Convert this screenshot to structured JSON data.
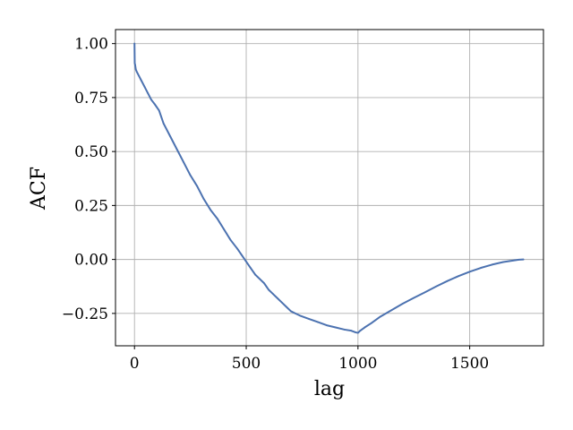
{
  "chart_data": {
    "type": "line",
    "title": "",
    "xlabel": "lag",
    "ylabel": "ACF",
    "xlim": [
      -85,
      1830
    ],
    "ylim": [
      -0.4,
      1.065
    ],
    "grid": true,
    "x_ticks": [
      0,
      500,
      1000,
      1500
    ],
    "x_tick_labels": [
      "0",
      "500",
      "1000",
      "1500"
    ],
    "y_ticks": [
      -0.25,
      0.0,
      0.25,
      0.5,
      0.75,
      1.0
    ],
    "y_tick_labels": [
      "−0.25",
      "0.00",
      "0.25",
      "0.50",
      "0.75",
      "1.00"
    ],
    "series": [
      {
        "color": "#4c72b0",
        "x": [
          0,
          1,
          3,
          6,
          10,
          15,
          20,
          30,
          45,
          60,
          75,
          90,
          110,
          130,
          160,
          190,
          220,
          250,
          280,
          310,
          340,
          370,
          400,
          430,
          460,
          480,
          500,
          520,
          540,
          560,
          580,
          600,
          620,
          640,
          660,
          680,
          700,
          720,
          740,
          780,
          820,
          860,
          900,
          940,
          970,
          990,
          1000,
          1010,
          1030,
          1060,
          1100,
          1150,
          1200,
          1250,
          1300,
          1350,
          1400,
          1450,
          1500,
          1550,
          1600,
          1650,
          1700,
          1720,
          1740
        ],
        "values": [
          1.0,
          0.91,
          0.9,
          0.88,
          0.87,
          0.86,
          0.85,
          0.83,
          0.8,
          0.77,
          0.74,
          0.72,
          0.69,
          0.63,
          0.57,
          0.51,
          0.45,
          0.39,
          0.34,
          0.28,
          0.23,
          0.19,
          0.14,
          0.09,
          0.05,
          0.02,
          -0.01,
          -0.04,
          -0.07,
          -0.09,
          -0.11,
          -0.14,
          -0.16,
          -0.18,
          -0.2,
          -0.22,
          -0.24,
          -0.25,
          -0.26,
          -0.275,
          -0.29,
          -0.305,
          -0.315,
          -0.325,
          -0.33,
          -0.338,
          -0.34,
          -0.33,
          -0.315,
          -0.295,
          -0.265,
          -0.235,
          -0.205,
          -0.178,
          -0.152,
          -0.125,
          -0.1,
          -0.077,
          -0.057,
          -0.039,
          -0.024,
          -0.012,
          -0.004,
          -0.001,
          0.0
        ]
      }
    ]
  }
}
